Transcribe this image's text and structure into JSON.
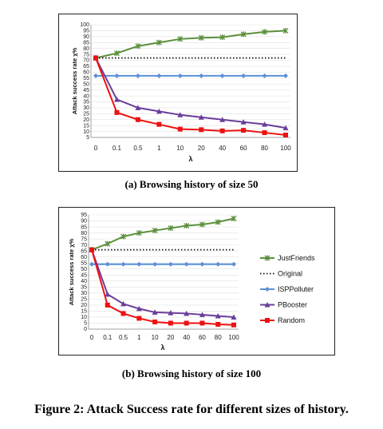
{
  "charts": [
    {
      "caption": "(a) Browsing history of size 50",
      "chart_data": {
        "type": "line",
        "categories": [
          "0",
          "0.1",
          "0.5",
          "1",
          "10",
          "20",
          "40",
          "60",
          "80",
          "100"
        ],
        "xlabel": "λ",
        "ylabel": "Attack success rate χ%",
        "ylim": [
          5,
          100
        ],
        "yticks": [
          5,
          10,
          15,
          20,
          25,
          30,
          35,
          40,
          45,
          50,
          55,
          60,
          65,
          70,
          75,
          80,
          85,
          90,
          95,
          100
        ],
        "legend": "none",
        "series": [
          {
            "name": "JustFriends",
            "color": "#5a8f3c",
            "marker": "star",
            "values": [
              72,
              76,
              82,
              85,
              88,
              89,
              89.5,
              92,
              94,
              95
            ]
          },
          {
            "name": "Original",
            "color": "#111111",
            "marker": "none",
            "dash": "dotted",
            "values": [
              72,
              72,
              72,
              72,
              72,
              72,
              72,
              72,
              72,
              72
            ]
          },
          {
            "name": "ISPPolluter",
            "color": "#5b8fd6",
            "marker": "diamond",
            "values": [
              57,
              57,
              57,
              57,
              57,
              57,
              57,
              57,
              57,
              57
            ]
          },
          {
            "name": "PBooster",
            "color": "#6a3d9a",
            "marker": "triangle",
            "values": [
              72,
              37,
              30,
              27,
              24,
              22,
              20,
              18,
              16,
              13
            ]
          },
          {
            "name": "Random",
            "color": "#ee1111",
            "marker": "square",
            "values": [
              72,
              26,
              20,
              16,
              12,
              11.5,
              10.5,
              11,
              9,
              7
            ]
          }
        ]
      }
    },
    {
      "caption": "(b) Browsing history of size 100",
      "chart_data": {
        "type": "line",
        "categories": [
          "0",
          "0.1",
          "0.5",
          "1",
          "10",
          "20",
          "40",
          "60",
          "80",
          "100"
        ],
        "xlabel": "λ",
        "ylabel": "Attack success rate χ%",
        "ylim": [
          0,
          95
        ],
        "yticks": [
          0,
          5,
          10,
          15,
          20,
          25,
          30,
          35,
          40,
          45,
          50,
          55,
          60,
          65,
          70,
          75,
          80,
          85,
          90,
          95
        ],
        "legend": "right",
        "series": [
          {
            "name": "JustFriends",
            "color": "#5a8f3c",
            "marker": "star",
            "values": [
              66,
              71,
              77,
              80,
              82,
              84,
              86,
              87,
              89,
              92
            ]
          },
          {
            "name": "Original",
            "color": "#111111",
            "marker": "none",
            "dash": "dotted",
            "values": [
              66,
              66,
              66,
              66,
              66,
              66,
              66,
              66,
              66,
              66
            ]
          },
          {
            "name": "ISPPolluter",
            "color": "#5b8fd6",
            "marker": "diamond",
            "values": [
              54,
              54,
              54,
              54,
              54,
              54,
              54,
              54,
              54,
              54
            ]
          },
          {
            "name": "PBooster",
            "color": "#6a3d9a",
            "marker": "triangle",
            "values": [
              66,
              29,
              21,
              17,
              14,
              13.5,
              13,
              12,
              11,
              10
            ]
          },
          {
            "name": "Random",
            "color": "#ee1111",
            "marker": "square",
            "values": [
              66,
              20,
              13,
              9,
              6,
              5,
              5,
              5,
              4,
              3.5
            ]
          }
        ]
      }
    }
  ],
  "figure_caption": "Figure 2: Attack Success rate for different sizes of history."
}
